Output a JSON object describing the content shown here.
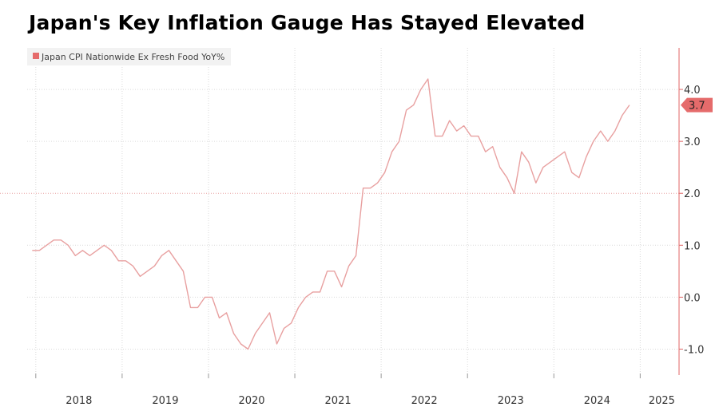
{
  "chart_data": {
    "type": "line",
    "title": "Japan's Key Inflation Gauge Has Stayed Elevated",
    "legend": {
      "position": "top-left"
    },
    "grid": true,
    "reference_line": 2.0,
    "ylim": [
      -1.5,
      4.8
    ],
    "yticks": [
      {
        "value": 4.0,
        "label": "4.0"
      },
      {
        "value": 3.0,
        "label": "3.0"
      },
      {
        "value": 2.0,
        "label": "2.0"
      },
      {
        "value": 1.0,
        "label": "1.0"
      },
      {
        "value": 0.0,
        "label": "0.0"
      },
      {
        "value": -1.0,
        "label": "-1.0"
      }
    ],
    "xlim": [
      2017.9,
      2025.45
    ],
    "year_ticks": [
      2018,
      2019,
      2020,
      2021,
      2022,
      2023,
      2024,
      2025
    ],
    "xticks": [
      {
        "value": 2018.5,
        "label": "2018"
      },
      {
        "value": 2019.5,
        "label": "2019"
      },
      {
        "value": 2020.5,
        "label": "2020"
      },
      {
        "value": 2021.5,
        "label": "2021"
      },
      {
        "value": 2022.5,
        "label": "2022"
      },
      {
        "value": 2023.5,
        "label": "2023"
      },
      {
        "value": 2024.5,
        "label": "2024"
      },
      {
        "value": 2025.25,
        "label": "2025"
      }
    ],
    "last_value_label": "3.7",
    "series": [
      {
        "name": "Japan CPI Nationwide Ex Fresh Food YoY%",
        "color": "#e8a0a0",
        "marker_color": "#e56b6b",
        "start": "2017-12",
        "values": [
          0.9,
          0.9,
          1.0,
          1.1,
          1.1,
          1.0,
          0.8,
          0.9,
          0.8,
          0.9,
          1.0,
          0.9,
          0.7,
          0.7,
          0.6,
          0.4,
          0.5,
          0.6,
          0.8,
          0.9,
          0.7,
          0.5,
          -0.2,
          -0.2,
          0.0,
          0.0,
          -0.4,
          -0.3,
          -0.7,
          -0.9,
          -1.0,
          -0.7,
          -0.5,
          -0.3,
          -0.9,
          -0.6,
          -0.5,
          -0.2,
          0.0,
          0.1,
          0.1,
          0.5,
          0.5,
          0.2,
          0.6,
          0.8,
          2.1,
          2.1,
          2.2,
          2.4,
          2.8,
          3.0,
          3.6,
          3.7,
          4.0,
          4.2,
          3.1,
          3.1,
          3.4,
          3.2,
          3.3,
          3.1,
          3.1,
          2.8,
          2.9,
          2.5,
          2.3,
          2.0,
          2.8,
          2.6,
          2.2,
          2.5,
          2.6,
          2.7,
          2.8,
          2.4,
          2.3,
          2.7,
          3.0,
          3.2,
          3.0,
          3.2,
          3.5,
          3.7
        ]
      }
    ]
  }
}
